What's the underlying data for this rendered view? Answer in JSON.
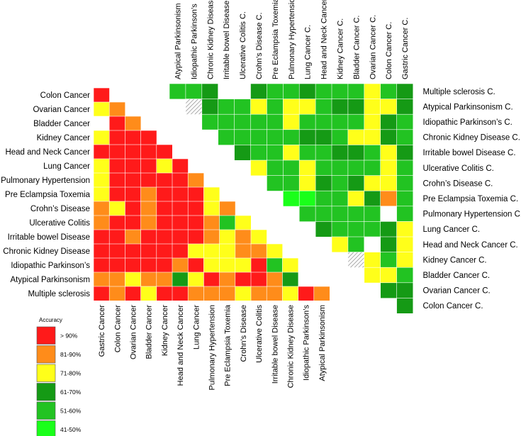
{
  "chart_data": [
    {
      "type": "heatmap",
      "rows": [
        "Colon Cancer",
        "Ovarian Cancer",
        "Bladder Cancer",
        "Kidney Cancer",
        "Head and Neck Cancer",
        "Lung Cancer",
        "Pulmonary Hypertension",
        "Pre Eclampsia Toxemia",
        "Crohn’s Disease",
        "Ulcerative Colitis",
        "Irritable bowel Disease",
        "Chronic Kidney Disease",
        "Idiopathic Parkinson’s",
        "Atypical Parkinsonism",
        "Multiple sclerosis"
      ],
      "columns": [
        "Gastric Cancer",
        "Colon Cancer",
        "Ovarian Cancer",
        "Bladder Cancer",
        "Kidney Cancer",
        "Head and Neck Cancer",
        "Lung Cancer",
        "Pulmonary Hypertension",
        "Pre Eclampsia Toxemia",
        "Crohn’s Disease",
        "Ulcerative Colitis",
        "Irritable bowel Disease",
        "Chronic Kidney Disease",
        "Idiopathic Parkinson’s",
        "Atypical Parkinsonism"
      ],
      "categories": [
        [
          "R"
        ],
        [
          "Y",
          "O"
        ],
        [
          "G",
          "R",
          "O"
        ],
        [
          "Y",
          "R",
          "R",
          "R"
        ],
        [
          "R",
          "R",
          "R",
          "R",
          "R"
        ],
        [
          "Y",
          "R",
          "R",
          "R",
          "Y",
          "R"
        ],
        [
          "Y",
          "R",
          "R",
          "R",
          "R",
          "R",
          "O"
        ],
        [
          "Y",
          "R",
          "R",
          "O",
          "R",
          "R",
          "R",
          "Y"
        ],
        [
          "O",
          "Y",
          "R",
          "O",
          "R",
          "R",
          "R",
          "Y",
          "O"
        ],
        [
          "O",
          "R",
          "R",
          "O",
          "R",
          "R",
          "R",
          "O",
          "N",
          "Y"
        ],
        [
          "R",
          "R",
          "O",
          "R",
          "R",
          "R",
          "R",
          "O",
          "Y",
          "O",
          "Y"
        ],
        [
          "R",
          "R",
          "R",
          "R",
          "R",
          "R",
          "Y",
          "Y",
          "Y",
          "O",
          "O",
          "Y"
        ],
        [
          "R",
          "R",
          "R",
          "R",
          "R",
          "O",
          "R",
          "Y",
          "Y",
          "Y",
          "R",
          "N",
          "Y"
        ],
        [
          "O",
          "O",
          "Y",
          "O",
          "O",
          "D",
          "Y",
          "R",
          "O",
          "R",
          "R",
          "O",
          "D"
        ],
        [
          "R",
          "O",
          "R",
          "Y",
          "R",
          "R",
          "O",
          "O",
          "O",
          "Y",
          "O",
          "O",
          "Y",
          "R",
          "O"
        ]
      ]
    },
    {
      "type": "heatmap",
      "columns": [
        "Atypical Parkinsonism",
        "Idiopathic Parkinson’s",
        "Chronic Kidney Disease",
        "Irritable bowel Disease",
        "Ulcerative Colitis C.",
        "Crohn’s Disease C.",
        "Pre Eclampsia Toxemia",
        "Pulmonary Hypertension",
        "Lung Cancer C.",
        "Head and Neck Cancer",
        "Kidney Cancer C.",
        "Bladder Cancer C.",
        "Ovarian Cancer C.",
        "Colon Cancer C.",
        "Gastric Cancer C."
      ],
      "rows": [
        "Multiple sclerosis C.",
        "Atypical Parkinsonism C.",
        "Idiopathic Parkinson’s C.",
        "Chronic Kidney Disease C.",
        "Irritable bowel Disease C.",
        "Ulcerative Colitis C.",
        "Crohn’s Disease C.",
        "Pre Eclampsia Toxemia C.",
        "Pulmonary Hypertension C.",
        "Lung Cancer C.",
        "Head and Neck Cancer C.",
        "Kidney Cancer C.",
        "Bladder Cancer C.",
        "Ovarian Cancer C.",
        "Colon Cancer C."
      ],
      "categories": [
        [
          "N",
          "N",
          "D",
          "W",
          "W",
          "D",
          "N",
          "N",
          "D",
          "N",
          "N",
          "N",
          "Y",
          "N",
          "D"
        ],
        [
          "H",
          "D",
          "N",
          "N",
          "Y",
          "N",
          "Y",
          "Y",
          "N",
          "D",
          "D",
          "Y",
          "Y",
          "D"
        ],
        [
          "N",
          "N",
          "N",
          "N",
          "N",
          "Y",
          "N",
          "N",
          "N",
          "N",
          "Y",
          "D",
          "N"
        ],
        [
          "N",
          "N",
          "N",
          "N",
          "N",
          "D",
          "D",
          "N",
          "Y",
          "Y",
          "D",
          "N"
        ],
        [
          "D",
          "N",
          "N",
          "Y",
          "N",
          "N",
          "D",
          "D",
          "N",
          "Y",
          "D"
        ],
        [
          "Y",
          "N",
          "N",
          "Y",
          "N",
          "N",
          "N",
          "N",
          "Y",
          "N"
        ],
        [
          "N",
          "N",
          "Y",
          "D",
          "N",
          "D",
          "Y",
          "Y",
          "N"
        ],
        [
          "L",
          "L",
          "N",
          "N",
          "Y",
          "D",
          "O",
          "N"
        ],
        [
          "N",
          "N",
          "N",
          "N",
          "N",
          "W",
          "N"
        ],
        [
          "D",
          "N",
          "N",
          "N",
          "D",
          "Y"
        ],
        [
          "Y",
          "N",
          "W",
          "D",
          "Y"
        ],
        [
          "H",
          "Y",
          "N",
          "Y"
        ],
        [
          "Y",
          "Y",
          "N"
        ],
        [
          "D",
          "D"
        ],
        [
          "D"
        ]
      ]
    }
  ],
  "palette": {
    "R": "#ff1a1a",
    "O": "#ff8c1a",
    "Y": "#ffff1a",
    "D": "#159a15",
    "N": "#22c322",
    "L": "#1aff1a",
    "W": "#ffffff",
    "H": "hatch"
  },
  "legend": {
    "title": "Accuracy",
    "items": [
      {
        "label": "> 90%",
        "key": "R"
      },
      {
        "label": "81-90%",
        "key": "O"
      },
      {
        "label": "71-80%",
        "key": "Y"
      },
      {
        "label": "61-70%",
        "key": "D"
      },
      {
        "label": "51-60%",
        "key": "N"
      },
      {
        "label": "41-50%",
        "key": "L"
      }
    ]
  }
}
